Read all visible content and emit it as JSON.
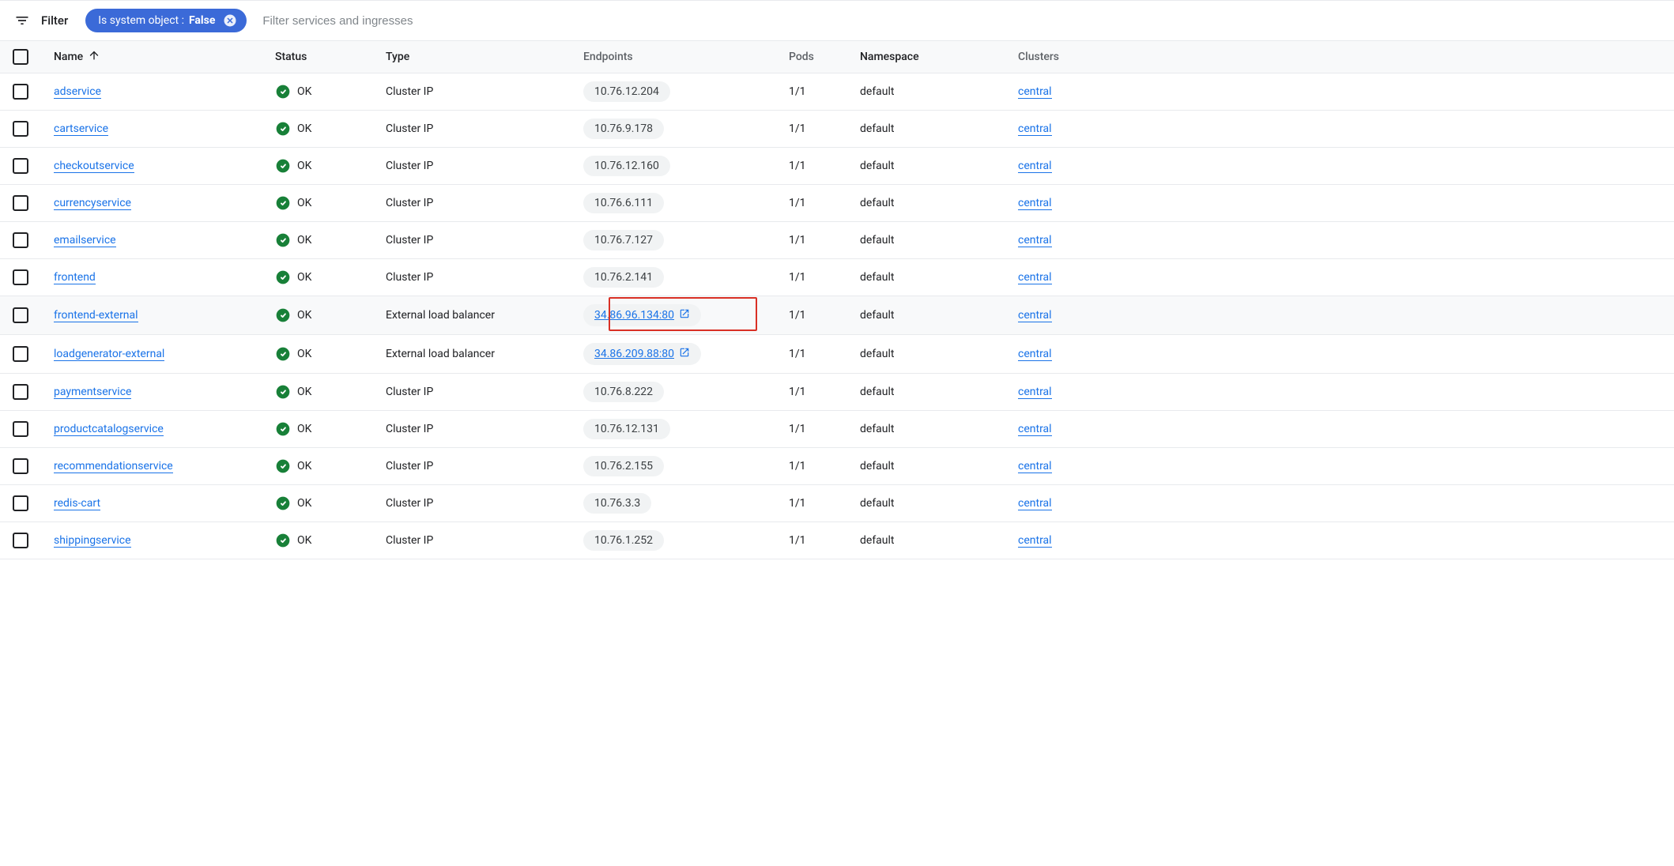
{
  "filter": {
    "label": "Filter",
    "chip": {
      "key": "Is system object : ",
      "value": "False"
    },
    "placeholder": "Filter services and ingresses"
  },
  "columns": {
    "name": "Name",
    "status": "Status",
    "type": "Type",
    "endpoints": "Endpoints",
    "pods": "Pods",
    "namespace": "Namespace",
    "clusters": "Clusters"
  },
  "status_ok_label": "OK",
  "colors": {
    "chip_bg": "#3b6ad8",
    "link": "#1a73e8",
    "ok_green": "#188038",
    "pill_bg": "#f1f3f4",
    "row_border": "#e8eaed",
    "header_bg": "#f8f9fa",
    "highlight_border": "#d93025"
  },
  "rows": [
    {
      "name": "adservice",
      "status": "OK",
      "type": "Cluster IP",
      "endpoint": "10.76.12.204",
      "endpoint_external": false,
      "pods": "1/1",
      "namespace": "default",
      "cluster": "central",
      "highlighted": false
    },
    {
      "name": "cartservice",
      "status": "OK",
      "type": "Cluster IP",
      "endpoint": "10.76.9.178",
      "endpoint_external": false,
      "pods": "1/1",
      "namespace": "default",
      "cluster": "central",
      "highlighted": false
    },
    {
      "name": "checkoutservice",
      "status": "OK",
      "type": "Cluster IP",
      "endpoint": "10.76.12.160",
      "endpoint_external": false,
      "pods": "1/1",
      "namespace": "default",
      "cluster": "central",
      "highlighted": false
    },
    {
      "name": "currencyservice",
      "status": "OK",
      "type": "Cluster IP",
      "endpoint": "10.76.6.111",
      "endpoint_external": false,
      "pods": "1/1",
      "namespace": "default",
      "cluster": "central",
      "highlighted": false
    },
    {
      "name": "emailservice",
      "status": "OK",
      "type": "Cluster IP",
      "endpoint": "10.76.7.127",
      "endpoint_external": false,
      "pods": "1/1",
      "namespace": "default",
      "cluster": "central",
      "highlighted": false
    },
    {
      "name": "frontend",
      "status": "OK",
      "type": "Cluster IP",
      "endpoint": "10.76.2.141",
      "endpoint_external": false,
      "pods": "1/1",
      "namespace": "default",
      "cluster": "central",
      "highlighted": false
    },
    {
      "name": "frontend-external",
      "status": "OK",
      "type": "External load balancer",
      "endpoint": "34.86.96.134:80",
      "endpoint_external": true,
      "pods": "1/1",
      "namespace": "default",
      "cluster": "central",
      "highlighted": true,
      "boxed": true
    },
    {
      "name": "loadgenerator-external",
      "status": "OK",
      "type": "External load balancer",
      "endpoint": "34.86.209.88:80",
      "endpoint_external": true,
      "pods": "1/1",
      "namespace": "default",
      "cluster": "central",
      "highlighted": false
    },
    {
      "name": "paymentservice",
      "status": "OK",
      "type": "Cluster IP",
      "endpoint": "10.76.8.222",
      "endpoint_external": false,
      "pods": "1/1",
      "namespace": "default",
      "cluster": "central",
      "highlighted": false
    },
    {
      "name": "productcatalogservice",
      "status": "OK",
      "type": "Cluster IP",
      "endpoint": "10.76.12.131",
      "endpoint_external": false,
      "pods": "1/1",
      "namespace": "default",
      "cluster": "central",
      "highlighted": false
    },
    {
      "name": "recommendationservice",
      "status": "OK",
      "type": "Cluster IP",
      "endpoint": "10.76.2.155",
      "endpoint_external": false,
      "pods": "1/1",
      "namespace": "default",
      "cluster": "central",
      "highlighted": false
    },
    {
      "name": "redis-cart",
      "status": "OK",
      "type": "Cluster IP",
      "endpoint": "10.76.3.3",
      "endpoint_external": false,
      "pods": "1/1",
      "namespace": "default",
      "cluster": "central",
      "highlighted": false
    },
    {
      "name": "shippingservice",
      "status": "OK",
      "type": "Cluster IP",
      "endpoint": "10.76.1.252",
      "endpoint_external": false,
      "pods": "1/1",
      "namespace": "default",
      "cluster": "central",
      "highlighted": false
    }
  ]
}
